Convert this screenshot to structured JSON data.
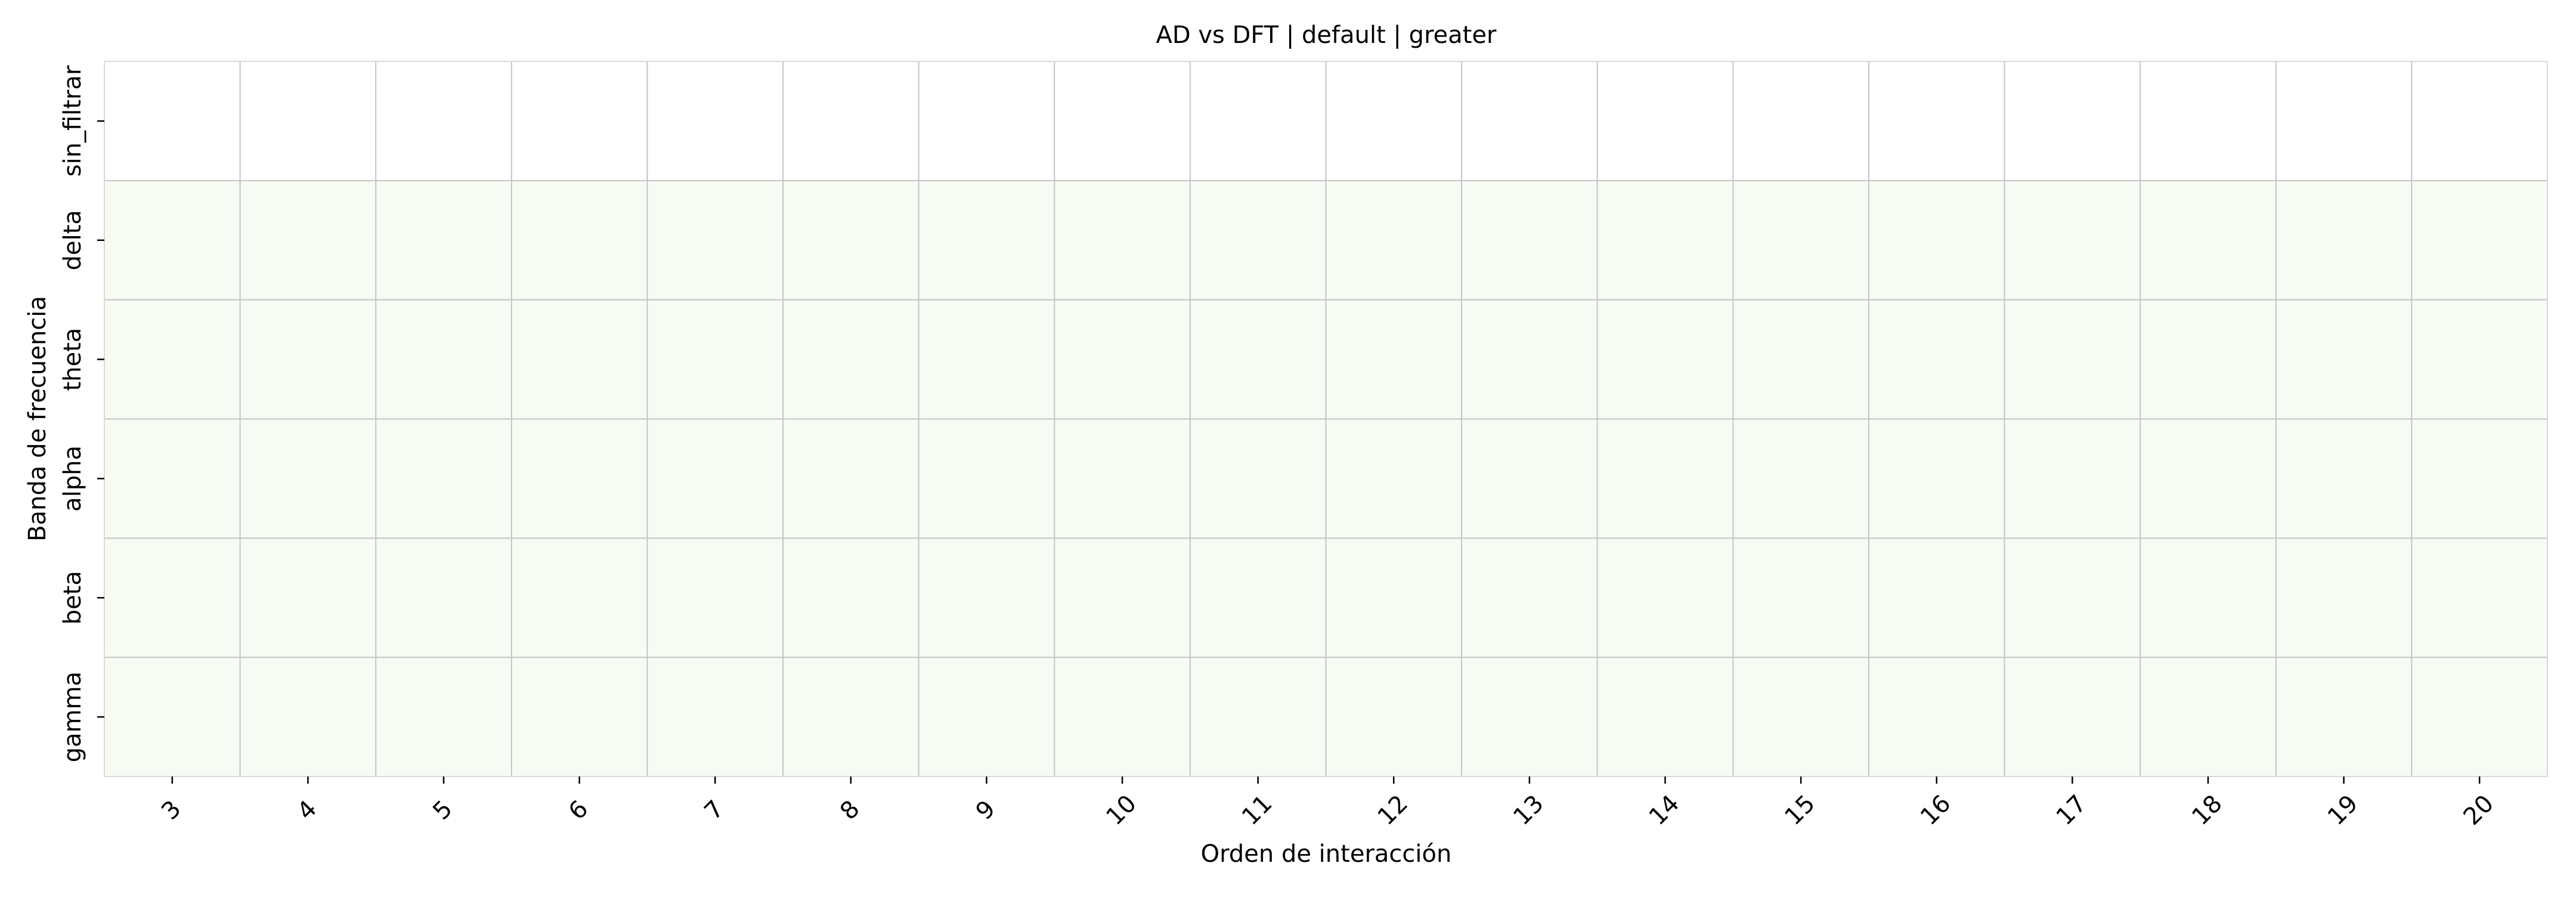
{
  "chart_data": {
    "type": "heatmap",
    "title": "AD vs DFT | default | greater",
    "xlabel": "Orden de interacción",
    "ylabel": "Banda de frecuencia",
    "x_categories": [
      "3",
      "4",
      "5",
      "6",
      "7",
      "8",
      "9",
      "10",
      "11",
      "12",
      "13",
      "14",
      "15",
      "16",
      "17",
      "18",
      "19",
      "20"
    ],
    "y_categories": [
      "sin_filtrar",
      "delta",
      "theta",
      "alpha",
      "beta",
      "gamma"
    ],
    "row_values": [
      0,
      1,
      1,
      1,
      1,
      1
    ],
    "value_range": [
      0,
      1
    ],
    "colormap": {
      "low": "#ffffff",
      "high": "#f6fbf4"
    },
    "grid_color": "#c4c4c4",
    "spine_color": "#d9d9d9",
    "colorbar": false
  }
}
